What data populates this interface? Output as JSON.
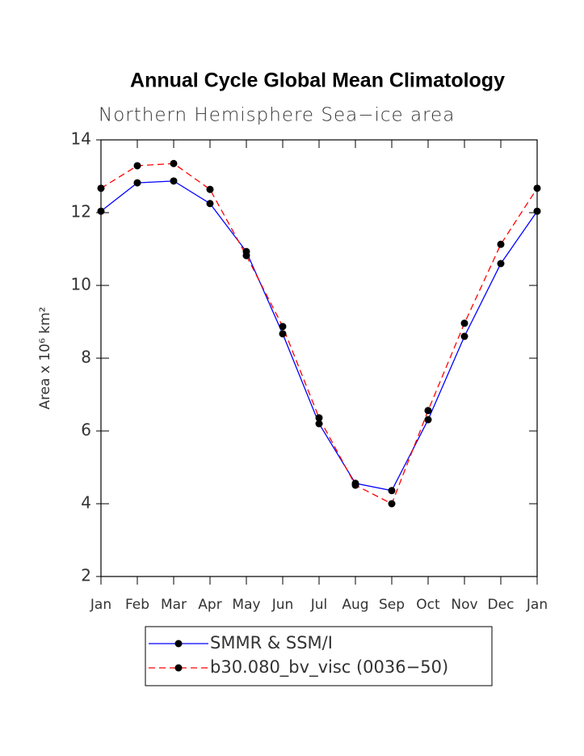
{
  "chart_data": {
    "type": "line",
    "title": "Annual Cycle Global Mean Climatology",
    "subtitle": "Northern Hemisphere Sea−ice area",
    "y_label": "Area x 10⁶ km²",
    "categories": [
      "Jan",
      "Feb",
      "Mar",
      "Apr",
      "May",
      "Jun",
      "Jul",
      "Aug",
      "Sep",
      "Oct",
      "Nov",
      "Dec",
      "Jan"
    ],
    "series": [
      {
        "name": "SMMR & SSM/I",
        "color": "#0000ff",
        "dashed": false,
        "values": [
          12.04,
          12.82,
          12.87,
          12.25,
          10.93,
          8.67,
          6.2,
          4.56,
          4.36,
          6.31,
          8.6,
          10.6,
          12.04
        ]
      },
      {
        "name": "b30.080_bv_visc (0036−50)",
        "color": "#ff0000",
        "dashed": true,
        "values": [
          12.67,
          13.29,
          13.35,
          12.64,
          10.82,
          8.87,
          6.36,
          4.51,
          4.0,
          6.56,
          8.96,
          11.13,
          12.67
        ]
      }
    ],
    "marker_color": "#000000",
    "ylim": [
      2,
      14
    ],
    "yticks": [
      2,
      4,
      6,
      8,
      10,
      12,
      14
    ],
    "legend": "bottom"
  }
}
